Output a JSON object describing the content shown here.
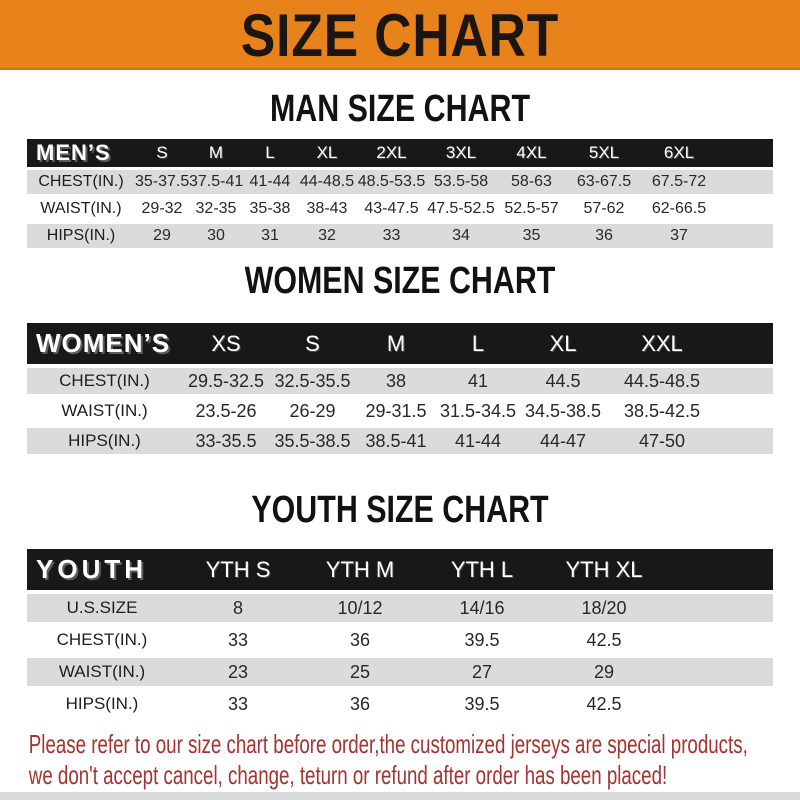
{
  "colors": {
    "banner_bg": "#E8821B",
    "bar_bg": "#181818",
    "bar_text": "#FFFFFF",
    "stripe": "#DBDBDB",
    "note_red": "#A33431",
    "strip": "#D9D9D9"
  },
  "banner": {
    "title": "SIZE CHART"
  },
  "sections": {
    "men": {
      "heading": "MAN SIZE CHART",
      "header_label": "MEN’S",
      "columns": [
        "S",
        "M",
        "L",
        "XL",
        "2XL",
        "3XL",
        "4XL",
        "5XL",
        "6XL"
      ],
      "rows": [
        {
          "label": "CHEST(IN.)",
          "values": [
            "35-37.5",
            "37.5-41",
            "41-44",
            "44-48.5",
            "48.5-53.5",
            "53.5-58",
            "58-63",
            "63-67.5",
            "67.5-72"
          ]
        },
        {
          "label": "WAIST(IN.)",
          "values": [
            "29-32",
            "32-35",
            "35-38",
            "38-43",
            "43-47.5",
            "47.5-52.5",
            "52.5-57",
            "57-62",
            "62-66.5"
          ]
        },
        {
          "label": "HIPS(IN.)",
          "values": [
            "29",
            "30",
            "31",
            "32",
            "33",
            "34",
            "35",
            "36",
            "37"
          ]
        }
      ]
    },
    "women": {
      "heading": "WOMEN SIZE CHART",
      "header_label": "WOMEN’S",
      "columns": [
        "XS",
        "S",
        "M",
        "L",
        "XL",
        "XXL"
      ],
      "rows": [
        {
          "label": "CHEST(IN.)",
          "values": [
            "29.5-32.5",
            "32.5-35.5",
            "38",
            "41",
            "44.5",
            "44.5-48.5"
          ]
        },
        {
          "label": "WAIST(IN.)",
          "values": [
            "23.5-26",
            "26-29",
            "29-31.5",
            "31.5-34.5",
            "34.5-38.5",
            "38.5-42.5"
          ]
        },
        {
          "label": "HIPS(IN.)",
          "values": [
            "33-35.5",
            "35.5-38.5",
            "38.5-41",
            "41-44",
            "44-47",
            "47-50"
          ]
        }
      ]
    },
    "youth": {
      "heading": "YOUTH SIZE CHART",
      "header_label": "YOUTH",
      "columns": [
        "YTH S",
        "YTH M",
        "YTH L",
        "YTH XL"
      ],
      "rows": [
        {
          "label": "U.S.SIZE",
          "values": [
            "8",
            "10/12",
            "14/16",
            "18/20"
          ]
        },
        {
          "label": "CHEST(IN.)",
          "values": [
            "33",
            "36",
            "39.5",
            "42.5"
          ]
        },
        {
          "label": "WAIST(IN.)",
          "values": [
            "23",
            "25",
            "27",
            "29"
          ]
        },
        {
          "label": "HIPS(IN.)",
          "values": [
            "33",
            "36",
            "39.5",
            "42.5"
          ]
        }
      ]
    }
  },
  "footer": {
    "line1": "Please refer to our size chart before order,the customized jerseys are special products,",
    "line2": "we don't accept cancel, change, teturn or refund after order has been placed!"
  }
}
